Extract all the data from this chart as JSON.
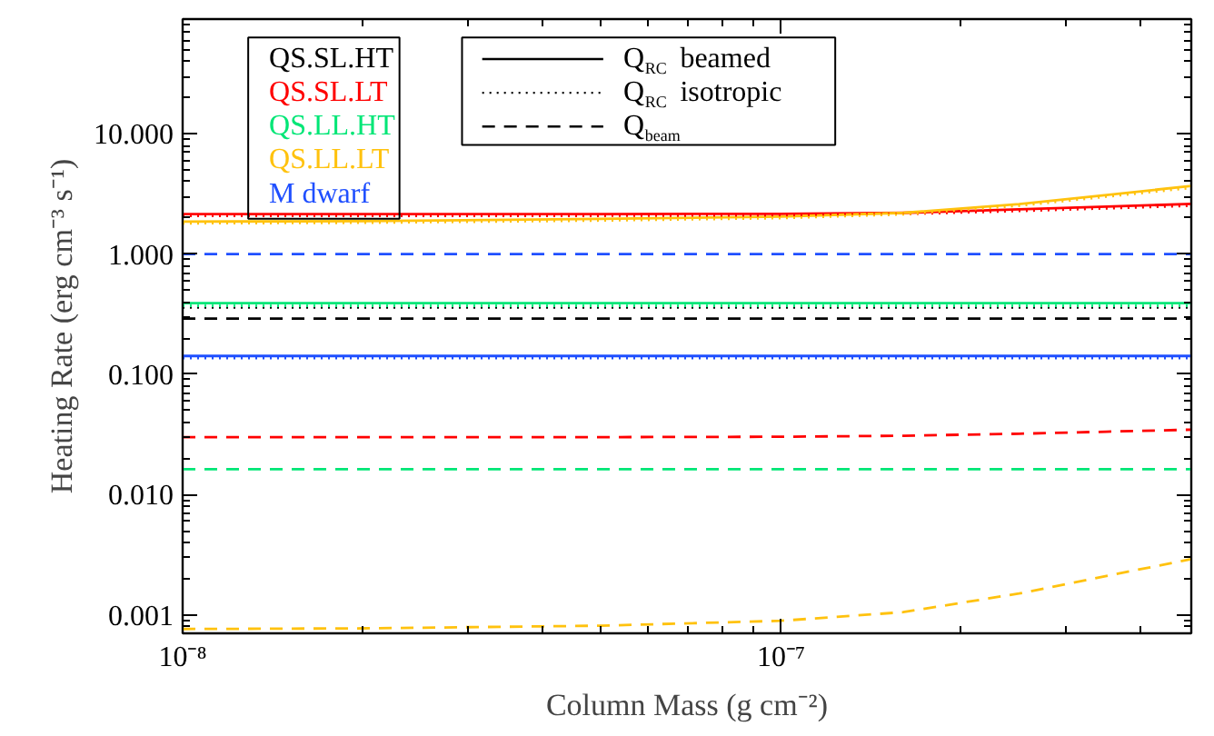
{
  "chart_data": {
    "type": "line",
    "xlabel": "Column Mass (g cm⁻²)",
    "ylabel": "Heating Rate (erg cm⁻³ s⁻¹)",
    "log": "xy",
    "xlim": [
      1e-08,
      4.85e-07
    ],
    "ylim": [
      0.0007,
      90
    ],
    "xticks": [
      {
        "value": 1e-08,
        "label": "10⁻⁸"
      },
      {
        "value": 1e-07,
        "label": "10⁻⁷"
      }
    ],
    "yticks": [
      {
        "value": 0.001,
        "label": "0.001"
      },
      {
        "value": 0.01,
        "label": "0.010"
      },
      {
        "value": 0.1,
        "label": "0.100"
      },
      {
        "value": 1,
        "label": "1.000"
      },
      {
        "value": 10,
        "label": "10.000"
      }
    ],
    "x": [
      1e-08,
      2e-08,
      5e-08,
      1e-07,
      1.6e-07,
      2.5e-07,
      3.5e-07,
      4.85e-07
    ],
    "legend": "top left",
    "grid": false,
    "annotations": [
      "Q$_{RC}$ beamed",
      "Q$_{RC}$ isotropic",
      "Q$_{beam}$"
    ],
    "series": [
      {
        "name": "QS.SL.HT",
        "color": "#000000",
        "line_style": "solid",
        "values": [
          null,
          null,
          null,
          null,
          null,
          null,
          null,
          null
        ]
      },
      {
        "color": "#000000",
        "line_style": "dotted",
        "values": [
          0.36,
          0.36,
          0.36,
          0.36,
          0.36,
          0.36,
          0.36,
          0.36
        ]
      },
      {
        "color": "#000000",
        "line_style": "dashed",
        "values": [
          0.29,
          0.29,
          0.29,
          0.29,
          0.29,
          0.29,
          0.29,
          0.29
        ]
      },
      {
        "name": "QS.SL.LT",
        "color": "#ff0000",
        "line_style": "solid",
        "values": [
          2.15,
          2.15,
          2.15,
          2.16,
          2.2,
          2.35,
          2.48,
          2.61
        ]
      },
      {
        "color": "#ff0000",
        "line_style": "dotted",
        "values": [
          2.08,
          2.08,
          2.08,
          2.1,
          2.15,
          2.28,
          2.4,
          2.52
        ]
      },
      {
        "color": "#ff0000",
        "line_style": "dashed",
        "values": [
          0.03,
          0.03,
          0.03,
          0.0302,
          0.0308,
          0.032,
          0.0333,
          0.0346
        ]
      },
      {
        "name": "QS.LL.HT",
        "color": "#00e676",
        "line_style": "solid",
        "values": [
          0.39,
          0.39,
          0.39,
          0.39,
          0.39,
          0.39,
          0.39,
          0.39
        ]
      },
      {
        "color": "#00e676",
        "line_style": "dotted",
        "values": [
          0.37,
          0.37,
          0.37,
          0.37,
          0.37,
          0.37,
          0.37,
          0.37
        ]
      },
      {
        "color": "#00e676",
        "line_style": "dashed",
        "values": [
          0.0162,
          0.0162,
          0.0162,
          0.0162,
          0.0162,
          0.0162,
          0.0162,
          0.0162
        ]
      },
      {
        "name": "QS.LL.LT",
        "color": "#ffc20e",
        "line_style": "solid",
        "values": [
          1.86,
          1.88,
          1.96,
          2.05,
          2.2,
          2.6,
          3.1,
          3.68
        ]
      },
      {
        "color": "#ffc20e",
        "line_style": "dotted",
        "values": [
          1.8,
          1.82,
          1.9,
          1.99,
          2.14,
          2.52,
          3.0,
          3.55
        ]
      },
      {
        "color": "#ffc20e",
        "line_style": "dashed",
        "values": [
          0.00076,
          0.00077,
          0.00081,
          0.00089,
          0.00105,
          0.0015,
          0.0021,
          0.0029
        ]
      },
      {
        "name": "M dwarf",
        "color": "#1f4fff",
        "line_style": "solid",
        "values": [
          0.142,
          0.142,
          0.142,
          0.142,
          0.142,
          0.142,
          0.142,
          0.142
        ]
      },
      {
        "color": "#1f4fff",
        "line_style": "dotted",
        "values": [
          0.136,
          0.136,
          0.136,
          0.136,
          0.136,
          0.136,
          0.136,
          0.136
        ]
      },
      {
        "color": "#1f4fff",
        "line_style": "dashed",
        "values": [
          1.0,
          1.0,
          1.0,
          1.0,
          1.0,
          1.0,
          1.0,
          1.0
        ]
      }
    ]
  }
}
